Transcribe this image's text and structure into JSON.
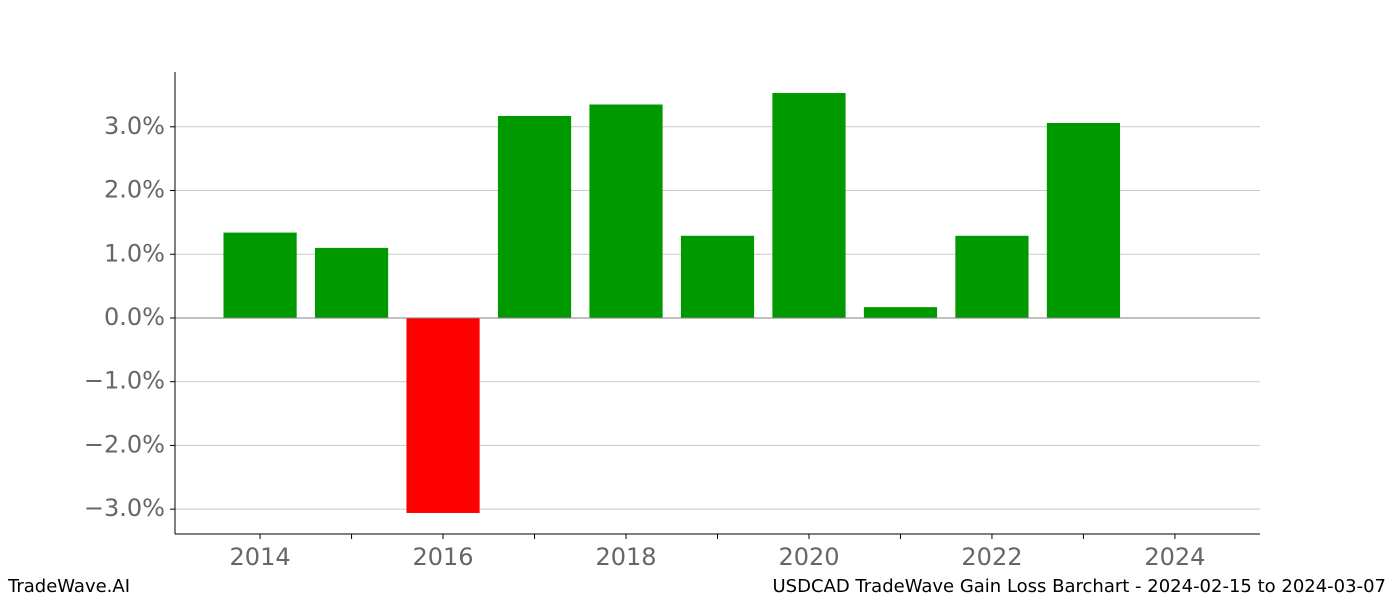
{
  "chart_data": {
    "type": "bar",
    "x": [
      2014,
      2015,
      2016,
      2017,
      2018,
      2019,
      2020,
      2021,
      2022,
      2023
    ],
    "values": [
      1.34,
      1.1,
      -3.06,
      3.17,
      3.35,
      1.29,
      3.53,
      0.17,
      1.29,
      3.06
    ],
    "colors": [
      "#009900",
      "#009900",
      "#ff0000",
      "#009900",
      "#009900",
      "#009900",
      "#009900",
      "#009900",
      "#009900",
      "#009900"
    ],
    "xlim": [
      2013.07,
      2024.93
    ],
    "xticks": [
      2014,
      2016,
      2018,
      2020,
      2022,
      2024
    ],
    "xminorticks": [
      2015,
      2017,
      2019,
      2021,
      2023
    ],
    "ylim": [
      -3.39,
      3.86
    ],
    "yticks": [
      {
        "value": -3,
        "label": "−3.0%"
      },
      {
        "value": -2,
        "label": "−2.0%"
      },
      {
        "value": -1,
        "label": "−1.0%"
      },
      {
        "value": 0,
        "label": "0.0%"
      },
      {
        "value": 1,
        "label": "1.0%"
      },
      {
        "value": 2,
        "label": "2.0%"
      },
      {
        "value": 3,
        "label": "3.0%"
      }
    ],
    "grid": true
  },
  "footer": {
    "left": "TradeWave.AI",
    "right": "USDCAD TradeWave Gain Loss Barchart - 2024-02-15 to 2024-03-07"
  }
}
